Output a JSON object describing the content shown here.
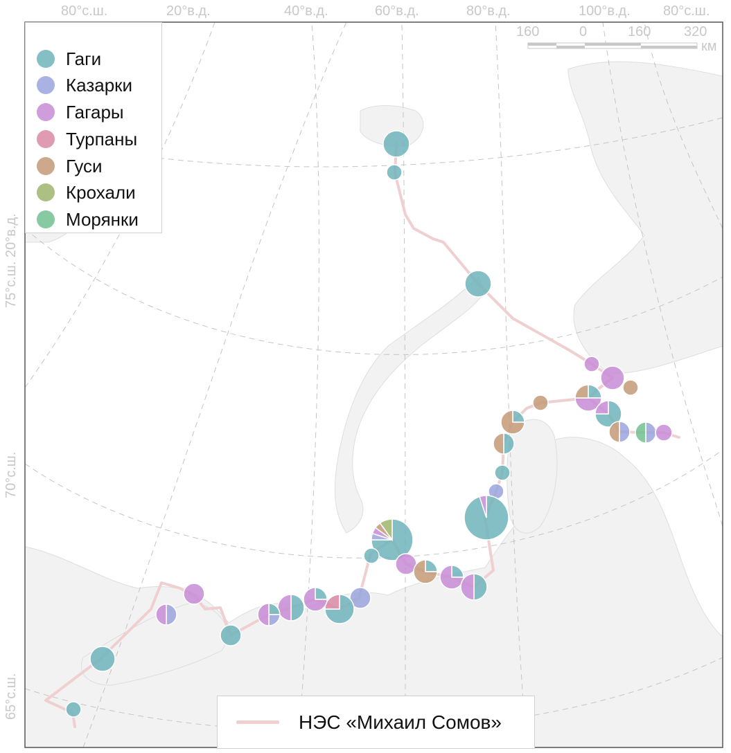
{
  "map": {
    "graticule_labels": {
      "top": [
        "80°с.ш.",
        "20°в.д.",
        "40°в.д.",
        "60°в.д.",
        "80°в.д.",
        "100°в.д.",
        "80°с.ш."
      ],
      "left": [
        "75°с.ш. 20°в.д.",
        "70°с.ш.",
        "65°с.ш."
      ]
    },
    "scale_bar": {
      "ticks": [
        "160",
        "0",
        "160",
        "320"
      ],
      "unit": "км"
    },
    "colors": {
      "land": "#f2f2f2",
      "coast": "#dedede",
      "grid": "#c4c4c4",
      "route": "#efcfd0",
      "frame": "#555555"
    }
  },
  "legend": {
    "items": [
      {
        "label": "Гаги",
        "color": "#6fb4bb"
      },
      {
        "label": "Казарки",
        "color": "#9aa5de"
      },
      {
        "label": "Гагары",
        "color": "#c88cd6"
      },
      {
        "label": "Турпаны",
        "color": "#d98aa5"
      },
      {
        "label": "Гуси",
        "color": "#c49a78"
      },
      {
        "label": "Крохали",
        "color": "#9fb56e"
      },
      {
        "label": "Морянки",
        "color": "#72bf90"
      }
    ]
  },
  "route_legend": {
    "label": "НЭС «Михаил Сомов»"
  }
}
